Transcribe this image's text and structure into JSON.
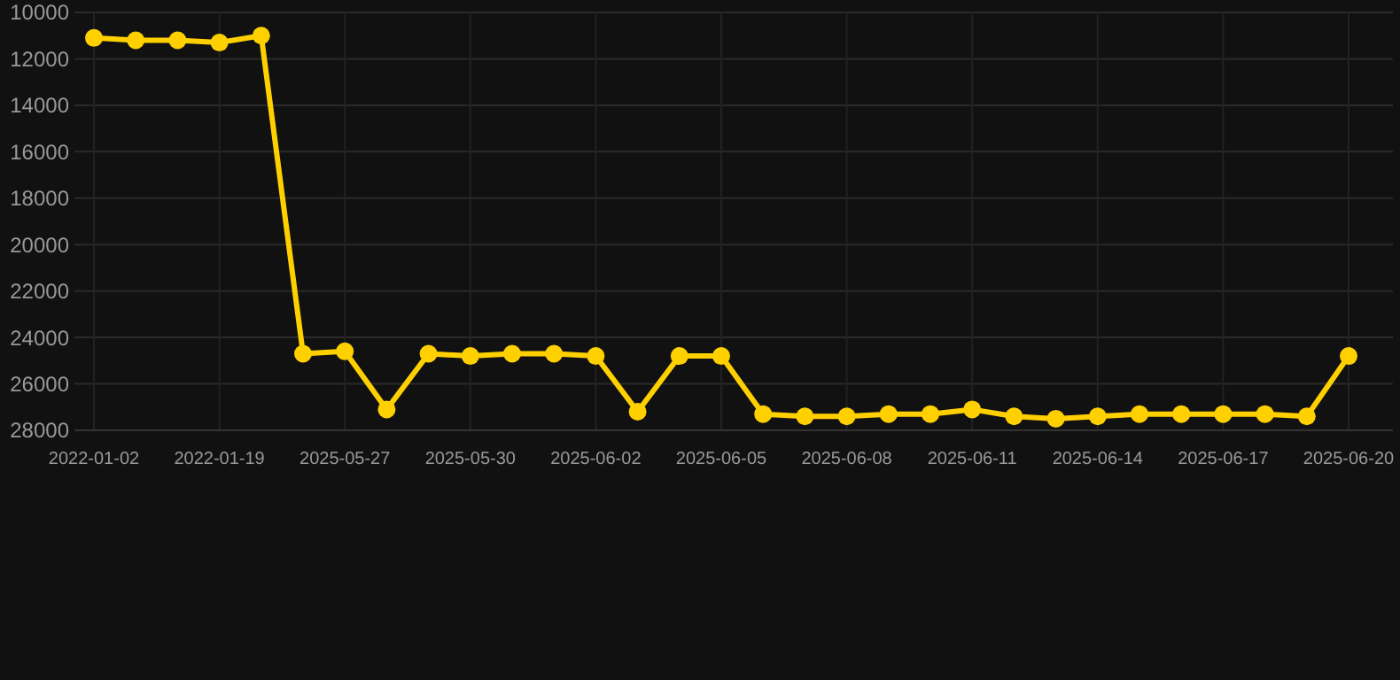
{
  "chart_data": {
    "type": "line",
    "categories": [
      "2022-01-02",
      null,
      null,
      "2022-01-19",
      null,
      null,
      "2025-05-27",
      null,
      null,
      "2025-05-30",
      null,
      null,
      "2025-06-02",
      null,
      null,
      "2025-06-05",
      null,
      null,
      "2025-06-08",
      null,
      null,
      "2025-06-11",
      null,
      null,
      "2025-06-14",
      null,
      null,
      "2025-06-17",
      null,
      null,
      "2025-06-20"
    ],
    "series": [
      {
        "color": "#ffd000",
        "values": [
          11100,
          11200,
          11200,
          11300,
          11000,
          24700,
          24600,
          27100,
          24700,
          24800,
          24700,
          24700,
          24800,
          27200,
          24800,
          24800,
          27300,
          27400,
          27400,
          27300,
          27300,
          27100,
          27400,
          27500,
          27400,
          27300,
          27300,
          27300,
          27300,
          27400,
          24800
        ]
      }
    ],
    "ylim": [
      28000,
      10000
    ],
    "yticks": [
      10000,
      12000,
      14000,
      16000,
      18000,
      20000,
      22000,
      24000,
      26000,
      28000
    ],
    "grid": true,
    "marker": "circle",
    "line_style": "solid"
  }
}
